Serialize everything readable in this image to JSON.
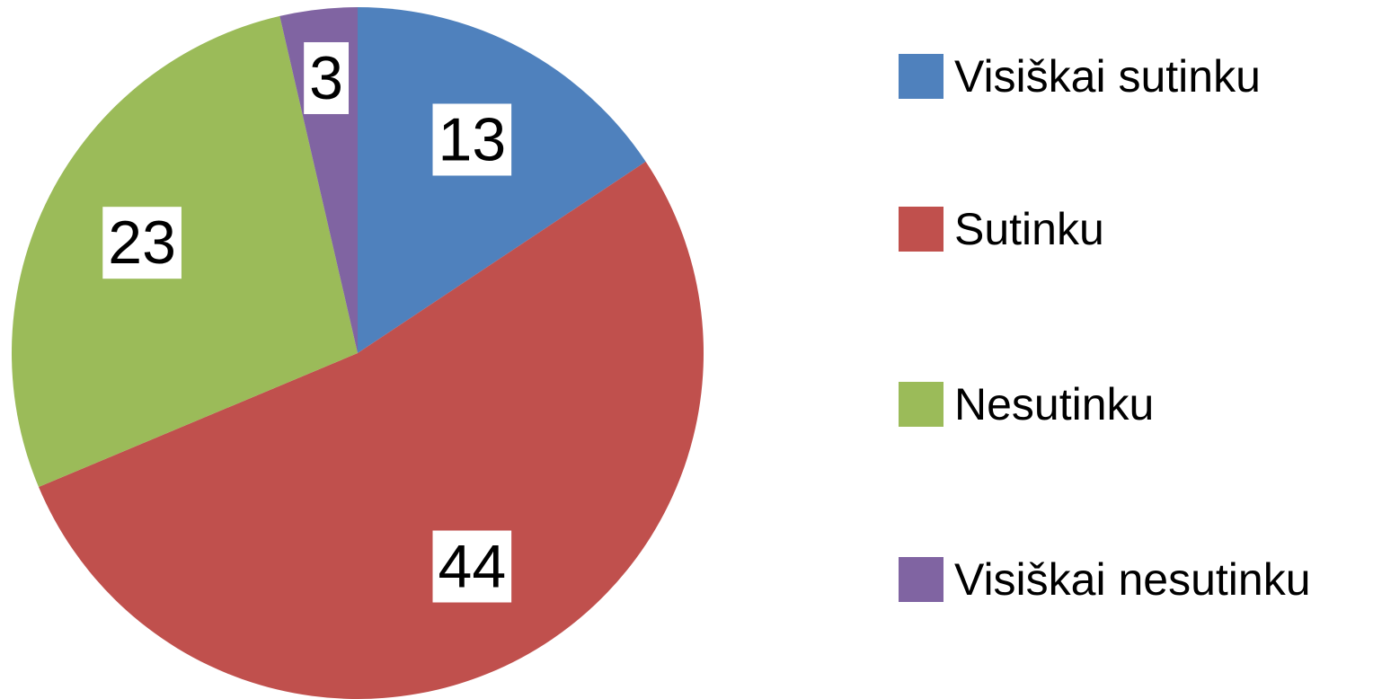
{
  "chart_data": {
    "type": "pie",
    "categories": [
      "Visiškai sutinku",
      "Sutinku",
      "Nesutinku",
      "Visiškai nesutinku"
    ],
    "values": [
      13,
      44,
      23,
      3
    ],
    "colors": [
      "#4f81bd",
      "#c0504d",
      "#9bbb59",
      "#8064a2"
    ],
    "legend": "right"
  }
}
